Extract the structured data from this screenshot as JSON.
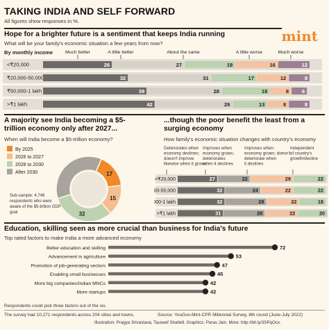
{
  "title": "TAKING INDIA AND SELF FORWARD",
  "subtitle": "All figures show responses in %.",
  "logo": "mint",
  "colors": {
    "dark": "#6d6b66",
    "light": "#a7a49d",
    "grey2": "#d6d2c9",
    "green": "#bcd2b1",
    "peach": "#f4c3a1",
    "purple": "#9c7f93",
    "rowbg": "#e3dfd6"
  },
  "chart_data": [
    {
      "type": "bar",
      "stacked": true,
      "orientation": "horizontal",
      "title": "Hope for a brighter future is a sentiment that keeps India running",
      "subtitle": "What will be your family's economic situation a few years from now?",
      "row_header": "By monthly income",
      "categories": [
        "<₹20,000",
        "₹20,000-50,000",
        "₹50,000-1 lakh",
        ">₹1 lakh"
      ],
      "series": [
        {
          "name": "Much better",
          "values": [
            26,
            32,
            39,
            42
          ]
        },
        {
          "name": "A little better",
          "values": [
            27,
            31,
            28,
            29
          ]
        },
        {
          "name": "About the same",
          "values": [
            19,
            17,
            18,
            13
          ]
        },
        {
          "name": "A little worse",
          "values": [
            16,
            12,
            8,
            8
          ]
        },
        {
          "name": "Much worse",
          "values": [
            12,
            8,
            6,
            8
          ]
        }
      ]
    },
    {
      "type": "pie",
      "donut": true,
      "title": "A majority see India becoming a $5-trillion economy only after 2027...",
      "subtitle": "When will India become a $5-trillion economy?",
      "labels": [
        "By 2025",
        "2026 to 2027",
        "2028 to 2030",
        "After 2030"
      ],
      "values": [
        17,
        15,
        32,
        36
      ],
      "shown_labels": [
        "17",
        "15",
        "32"
      ],
      "note": "Sub-sample: 4,749 respondents who were aware of the $5-trillion GDP goal"
    },
    {
      "type": "bar",
      "stacked": true,
      "orientation": "horizontal",
      "title": "...though the poor benefit the least from a surging economy",
      "subtitle": "How family's economic situation changes with country's economy",
      "categories": [
        "<₹20,000",
        "₹20,000-50,000",
        "₹50,000-1 lakh",
        ">₹1 lakh"
      ],
      "series": [
        {
          "name": "Deteriorates when economy declines; doesn't improve likewise when it grows",
          "values": [
            27,
            32,
            32,
            31
          ]
        },
        {
          "name": "Improves when economy grows; deteriorates when it declines",
          "values": [
            22,
            24,
            28,
            28
          ]
        },
        {
          "name": "Improves when economy grows; doesn't deteriorate when it declines",
          "values": [
            29,
            22,
            22,
            22
          ]
        },
        {
          "name": "Independent of country's growth/decline",
          "values": [
            22,
            22,
            18,
            20
          ]
        }
      ]
    },
    {
      "type": "bar",
      "orientation": "horizontal",
      "title": "Education, skilling seen as more crucial than business for India's future",
      "subtitle": "Top rated factors to make India a more advanced economy",
      "categories": [
        "Better education and skilling",
        "Advancement in agriculture",
        "Promotion of job-generating sectors",
        "Enabling small businesses",
        "More big companies/Indian MNCs",
        "More startups"
      ],
      "values": [
        72,
        53,
        47,
        45,
        42,
        42
      ]
    }
  ],
  "footnotes": {
    "note1": "Respondents could pick three factors out of the six.",
    "note2": "The survey had 10,271 respondents across 204 cities and towns.",
    "source": "Source: YouGov-Mint-CPR Millennial Survey, 8th round (June-July 2022)",
    "credits": "Illustration: Pragya Srivastava, Tauseef Shahidi. Graphics: Paras Jain. More: http://bit.ly/3SPqOcx."
  }
}
